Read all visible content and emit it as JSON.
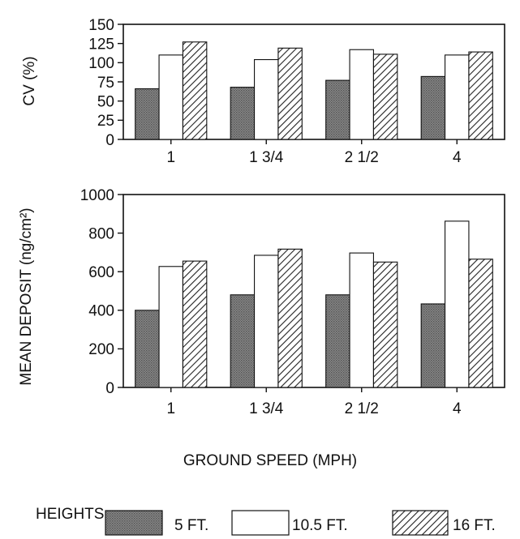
{
  "chart_data": [
    {
      "type": "bar",
      "ylabel": "CV (%)",
      "ylim": [
        0,
        150
      ],
      "yticks": [
        "0",
        "25",
        "50",
        "75",
        "100",
        "125",
        "150"
      ],
      "categories": [
        "1",
        "1 3/4",
        "2 1/2",
        "4"
      ],
      "series": [
        {
          "name": "5 FT.",
          "values": [
            66,
            68,
            77,
            82
          ]
        },
        {
          "name": "10.5 FT.",
          "values": [
            110,
            104,
            117,
            110
          ]
        },
        {
          "name": "16 FT.",
          "values": [
            127,
            119,
            111,
            114
          ]
        }
      ]
    },
    {
      "type": "bar",
      "ylabel": "MEAN DEPOSIT (ng/cm²)",
      "xlabel": "GROUND SPEED (MPH)",
      "ylim": [
        0,
        1000
      ],
      "yticks": [
        "0",
        "200",
        "400",
        "600",
        "800",
        "1000"
      ],
      "categories": [
        "1",
        "1 3/4",
        "2 1/2",
        "4"
      ],
      "series": [
        {
          "name": "5 FT.",
          "values": [
            400,
            480,
            480,
            433
          ]
        },
        {
          "name": "10.5 FT.",
          "values": [
            627,
            685,
            697,
            862
          ]
        },
        {
          "name": "16 FT.",
          "values": [
            655,
            717,
            650,
            665
          ]
        }
      ]
    }
  ],
  "legend": {
    "title": "HEIGHTS:",
    "items": [
      {
        "label": "5 FT.",
        "fill": "dots"
      },
      {
        "label": "10.5 FT.",
        "fill": "white"
      },
      {
        "label": "16 FT.",
        "fill": "hatch"
      }
    ]
  },
  "colors": {
    "dark_fill": "#7a7a7a",
    "hatch": "#222222",
    "background": "#ffffff"
  }
}
